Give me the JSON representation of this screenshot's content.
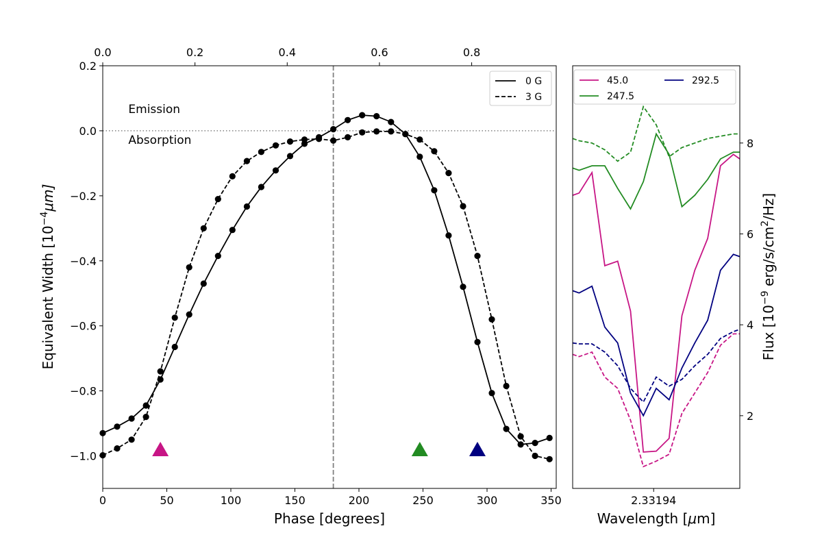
{
  "chart_data": [
    {
      "type": "line",
      "name": "equivalent-width-vs-phase",
      "xlabel": "Phase [degrees]",
      "ylabel": "Equivalent Width [10",
      "ylabel_exp": "−4",
      "ylabel_unit_mu": "μ",
      "ylabel_unit_tail": "m]",
      "xlim": [
        0,
        354
      ],
      "ylim": [
        -1.1,
        0.2
      ],
      "xticks": [
        0,
        50,
        100,
        150,
        200,
        250,
        300,
        350
      ],
      "xtick_labels": [
        "0",
        "50",
        "100",
        "150",
        "200",
        "250",
        "300",
        "350"
      ],
      "yticks": [
        0.2,
        0.0,
        -0.2,
        -0.4,
        -0.6,
        -0.8,
        -1.0
      ],
      "ytick_labels": [
        "0.2",
        "0.0",
        "−0.2",
        "−0.4",
        "−0.6",
        "−0.8",
        "−1.0"
      ],
      "top_axis": {
        "scale_to_degrees": 360,
        "ticks": [
          0.0,
          0.2,
          0.4,
          0.6,
          0.8
        ],
        "tick_labels": [
          "0.0",
          "0.2",
          "0.4",
          "0.6",
          "0.8"
        ]
      },
      "reference_lines": {
        "vertical_x": 180,
        "vertical_color": "#808080",
        "horizontal_y": 0.0,
        "horizontal_color": "#808080"
      },
      "annotations": [
        {
          "text": "Emission",
          "x": 20,
          "y": 0.055
        },
        {
          "text": "Absorption",
          "x": 20,
          "y": -0.04
        }
      ],
      "legend": {
        "position": "top-right",
        "entries": [
          "0 G",
          "3 G"
        ]
      },
      "series": [
        {
          "name": "0 G",
          "style": "solid",
          "x": [
            0,
            11.25,
            22.5,
            33.75,
            45,
            56.25,
            67.5,
            78.75,
            90,
            101.25,
            112.5,
            123.75,
            135,
            146.25,
            157.5,
            168.75,
            180,
            191.25,
            202.5,
            213.75,
            225,
            236.25,
            247.5,
            258.75,
            270,
            281.25,
            292.5,
            303.75,
            315,
            326.25,
            337.5,
            348.75
          ],
          "y": [
            -0.93,
            -0.91,
            -0.885,
            -0.845,
            -0.765,
            -0.665,
            -0.565,
            -0.47,
            -0.385,
            -0.305,
            -0.233,
            -0.173,
            -0.122,
            -0.078,
            -0.04,
            -0.02,
            0.005,
            0.033,
            0.048,
            0.045,
            0.027,
            -0.01,
            -0.08,
            -0.183,
            -0.322,
            -0.48,
            -0.65,
            -0.807,
            -0.917,
            -0.965,
            -0.96,
            -0.945
          ]
        },
        {
          "name": "3 G",
          "style": "dashed",
          "x": [
            0,
            11.25,
            22.5,
            33.75,
            45,
            56.25,
            67.5,
            78.75,
            90,
            101.25,
            112.5,
            123.75,
            135,
            146.25,
            157.5,
            168.75,
            180,
            191.25,
            202.5,
            213.75,
            225,
            236.25,
            247.5,
            258.75,
            270,
            281.25,
            292.5,
            303.75,
            315,
            326.25,
            337.5,
            348.75
          ],
          "y": [
            -0.998,
            -0.977,
            -0.95,
            -0.88,
            -0.74,
            -0.575,
            -0.42,
            -0.3,
            -0.21,
            -0.14,
            -0.093,
            -0.065,
            -0.045,
            -0.033,
            -0.027,
            -0.025,
            -0.03,
            -0.02,
            -0.005,
            -0.002,
            -0.002,
            -0.01,
            -0.027,
            -0.063,
            -0.13,
            -0.232,
            -0.385,
            -0.58,
            -0.785,
            -0.94,
            -1.0,
            -1.01
          ]
        }
      ],
      "markers": [
        {
          "x": 45,
          "y": -0.98,
          "color": "#c71585"
        },
        {
          "x": 247.5,
          "y": -0.98,
          "color": "#228b22"
        },
        {
          "x": 292.5,
          "y": -0.98,
          "color": "#000080"
        }
      ]
    },
    {
      "type": "line",
      "name": "flux-vs-wavelength",
      "xlabel": "Wavelength [",
      "xlabel_mu": "μ",
      "xlabel_tail": "m]",
      "ylabel": "Flux [10",
      "ylabel_exp": "−9",
      "ylabel_mid": " erg/s/cm",
      "ylabel_exp2": "2",
      "ylabel_tail": "/Hz]",
      "xtick_label": "2.33194",
      "xlim": [
        0,
        13
      ],
      "xtick_value": 6.3,
      "ylim": [
        0.4,
        9.7
      ],
      "yticks": [
        2,
        4,
        6,
        8
      ],
      "ytick_labels": [
        "2",
        "4",
        "6",
        "8"
      ],
      "legend": {
        "position": "top-left",
        "entries": [
          "45.0",
          "247.5",
          "292.5"
        ]
      },
      "x": [
        0,
        0.5,
        1.5,
        2.5,
        3.5,
        4.5,
        5.5,
        6.5,
        7.5,
        8.5,
        9.5,
        10.5,
        11.5,
        12.5,
        13
      ],
      "series": [
        {
          "name": "45.0",
          "color": "#c71585",
          "style": "solid",
          "values": [
            6.85,
            6.9,
            7.35,
            5.3,
            5.4,
            4.3,
            1.2,
            1.22,
            1.5,
            4.2,
            5.2,
            5.9,
            7.5,
            7.75,
            7.65
          ]
        },
        {
          "name": "247.5",
          "color": "#228b22",
          "style": "solid",
          "values": [
            7.45,
            7.4,
            7.5,
            7.5,
            7.0,
            6.55,
            7.15,
            8.2,
            7.75,
            6.6,
            6.85,
            7.2,
            7.65,
            7.8,
            7.8
          ]
        },
        {
          "name": "292.5",
          "color": "#000080",
          "style": "solid",
          "values": [
            4.75,
            4.7,
            4.85,
            3.95,
            3.6,
            2.5,
            2.0,
            2.6,
            2.35,
            3.05,
            3.6,
            4.1,
            5.2,
            5.55,
            5.5
          ]
        },
        {
          "name": "45.0 (3 G)",
          "color": "#c71585",
          "style": "dashed",
          "values": [
            3.35,
            3.3,
            3.4,
            2.85,
            2.6,
            1.9,
            0.88,
            1.0,
            1.15,
            2.05,
            2.5,
            2.95,
            3.55,
            3.8,
            3.8
          ]
        },
        {
          "name": "247.5 (3 G)",
          "color": "#228b22",
          "style": "dashed",
          "values": [
            8.1,
            8.05,
            8.0,
            7.85,
            7.6,
            7.8,
            8.8,
            8.4,
            7.7,
            7.9,
            8.0,
            8.1,
            8.15,
            8.2,
            8.2
          ]
        },
        {
          "name": "292.5 (3 G)",
          "color": "#000080",
          "style": "dashed",
          "values": [
            3.6,
            3.58,
            3.58,
            3.4,
            3.1,
            2.6,
            2.3,
            2.85,
            2.65,
            2.8,
            3.1,
            3.35,
            3.7,
            3.85,
            3.9
          ]
        }
      ]
    }
  ]
}
